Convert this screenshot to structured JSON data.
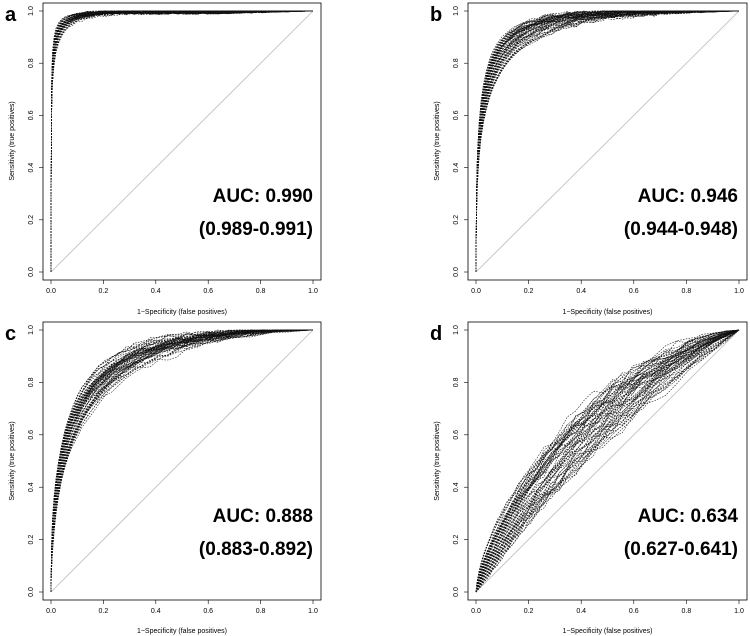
{
  "chart_data": [
    {
      "type": "line",
      "panel_label": "a",
      "xlabel": "1−Specificity (false positives)",
      "ylabel": "Sensitivity (true positives)",
      "xlim": [
        0,
        1
      ],
      "ylim": [
        0,
        1
      ],
      "x_ticks": [
        "0.0",
        "0.2",
        "0.4",
        "0.6",
        "0.8",
        "1.0"
      ],
      "y_ticks": [
        "0.0",
        "0.2",
        "0.4",
        "0.6",
        "0.8",
        "1.0"
      ],
      "auc_label": "AUC: 0.990",
      "auc_ci_label": "(0.989-0.991)",
      "auc": 0.99,
      "n_curves": 60,
      "diagonal": true
    },
    {
      "type": "line",
      "panel_label": "b",
      "xlabel": "1−Specificity (false positives)",
      "ylabel": "Sensitivity (true positives)",
      "xlim": [
        0,
        1
      ],
      "ylim": [
        0,
        1
      ],
      "x_ticks": [
        "0.0",
        "0.2",
        "0.4",
        "0.6",
        "0.8",
        "1.0"
      ],
      "y_ticks": [
        "0.0",
        "0.2",
        "0.4",
        "0.6",
        "0.8",
        "1.0"
      ],
      "auc_label": "AUC: 0.946",
      "auc_ci_label": "(0.944-0.948)",
      "auc": 0.946,
      "n_curves": 60,
      "diagonal": true
    },
    {
      "type": "line",
      "panel_label": "c",
      "xlabel": "1−Specificity (false positives)",
      "ylabel": "Sensitivity (true positives)",
      "xlim": [
        0,
        1
      ],
      "ylim": [
        0,
        1
      ],
      "x_ticks": [
        "0.0",
        "0.2",
        "0.4",
        "0.6",
        "0.8",
        "1.0"
      ],
      "y_ticks": [
        "0.0",
        "0.2",
        "0.4",
        "0.6",
        "0.8",
        "1.0"
      ],
      "auc_label": "AUC: 0.888",
      "auc_ci_label": "(0.883-0.892)",
      "auc": 0.888,
      "n_curves": 60,
      "diagonal": true
    },
    {
      "type": "line",
      "panel_label": "d",
      "xlabel": "1−Specificity (false positives)",
      "ylabel": "Sensitivity (true positives)",
      "xlim": [
        0,
        1
      ],
      "ylim": [
        0,
        1
      ],
      "x_ticks": [
        "0.0",
        "0.2",
        "0.4",
        "0.6",
        "0.8",
        "1.0"
      ],
      "y_ticks": [
        "0.0",
        "0.2",
        "0.4",
        "0.6",
        "0.8",
        "1.0"
      ],
      "auc_label": "AUC: 0.634",
      "auc_ci_label": "(0.627-0.641)",
      "auc": 0.634,
      "n_curves": 60,
      "diagonal": true
    }
  ],
  "colors": {
    "curve": "#111111",
    "diagonal": "#bbbbbb",
    "frame": "#000000",
    "background": "#ffffff"
  }
}
